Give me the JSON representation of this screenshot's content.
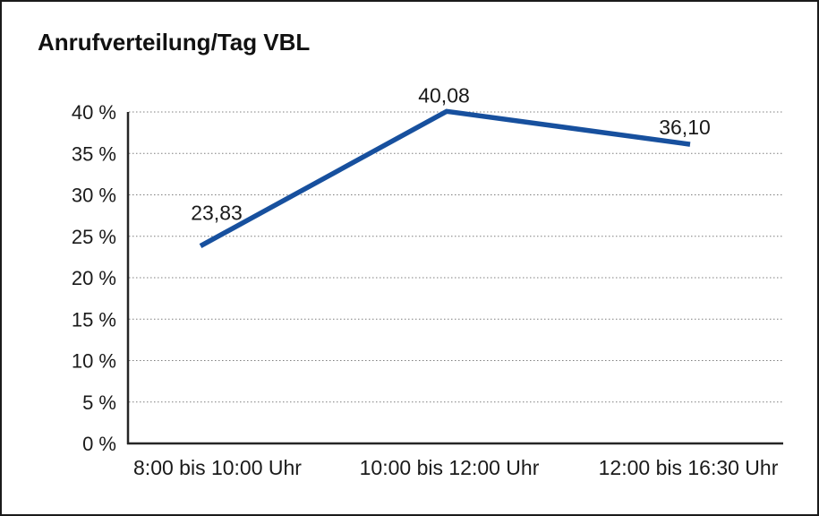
{
  "page": {
    "background": "#ffffff",
    "border_color": "#1a1a1a"
  },
  "chart_data": {
    "type": "line",
    "title": "Anrufverteilung/Tag VBL",
    "categories": [
      "8:00 bis 10:00 Uhr",
      "10:00 bis 12:00 Uhr",
      "12:00 bis 16:30 Uhr"
    ],
    "values": [
      23.83,
      40.08,
      36.1
    ],
    "data_labels": [
      "23,83",
      "40,08",
      "36,10"
    ],
    "xlabel": "",
    "ylabel": "",
    "ylim": [
      0,
      40
    ],
    "y_tick_step": 5,
    "y_tick_values": [
      0,
      5,
      10,
      15,
      20,
      25,
      30,
      35,
      40
    ],
    "y_tick_labels": [
      "0 %",
      "5 %",
      "10 %",
      "15 %",
      "20 %",
      "25 %",
      "30 %",
      "35 %",
      "40 %"
    ],
    "grid": "horizontal-dotted",
    "legend": "none",
    "marker": "none",
    "series_color": "#17509E"
  },
  "colors": {
    "line": "#17509E",
    "grid": "#7f7f7f",
    "axis": "#262626",
    "text": "#1a1a1a",
    "background": "#ffffff",
    "border": "#1a1a1a"
  }
}
